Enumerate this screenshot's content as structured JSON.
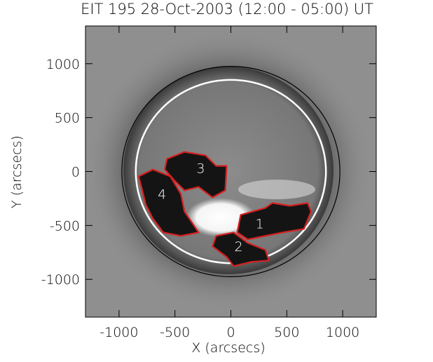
{
  "chart_data": {
    "type": "image",
    "title": "EIT 195 28-Oct-2003 (12:00 - 05:00) UT",
    "x_label": "X (arcsecs)",
    "y_label": "Y (arcsecs)",
    "xlim": [
      -1300,
      1300
    ],
    "ylim": [
      -1350,
      1350
    ],
    "xticks": [
      -1000,
      -500,
      0,
      500,
      1000
    ],
    "yticks": [
      -1000,
      -500,
      0,
      500,
      1000
    ],
    "limb_circles": [
      {
        "r": 975,
        "color": "#000000"
      },
      {
        "r": 850,
        "color": "#ffffff"
      }
    ],
    "regions": [
      {
        "label": "1",
        "label_x": 258,
        "label_y": -480,
        "color": "#d62020",
        "x": [
          88,
          308,
          371,
          528,
          686,
          717,
          654,
          465,
          308,
          151,
          57
        ],
        "y": [
          -402,
          -338,
          -292,
          -318,
          -292,
          -370,
          -532,
          -565,
          -597,
          -630,
          -565
        ]
      },
      {
        "label": "2",
        "label_x": 69,
        "label_y": -694,
        "color": "#d62020",
        "x": [
          -132,
          25,
          151,
          308,
          340,
          182,
          25,
          -38,
          -164
        ],
        "y": [
          -597,
          -565,
          -662,
          -727,
          -825,
          -838,
          -877,
          -792,
          -694
        ]
      },
      {
        "label": "3",
        "label_x": -270,
        "label_y": 32,
        "color": "#d62020",
        "x": [
          -572,
          -415,
          -226,
          -132,
          -38,
          -50,
          -164,
          -289,
          -415,
          -509,
          -591
        ],
        "y": [
          117,
          182,
          149,
          52,
          52,
          -175,
          -240,
          -143,
          -175,
          -78,
          19
        ]
      },
      {
        "label": "4",
        "label_x": -616,
        "label_y": -208,
        "color": "#d62020",
        "x": [
          -824,
          -698,
          -541,
          -447,
          -415,
          -352,
          -289,
          -447,
          -604,
          -698,
          -761,
          -792
        ],
        "y": [
          -45,
          19,
          -45,
          -208,
          -370,
          -467,
          -565,
          -597,
          -565,
          -435,
          -305,
          -175
        ]
      }
    ]
  }
}
